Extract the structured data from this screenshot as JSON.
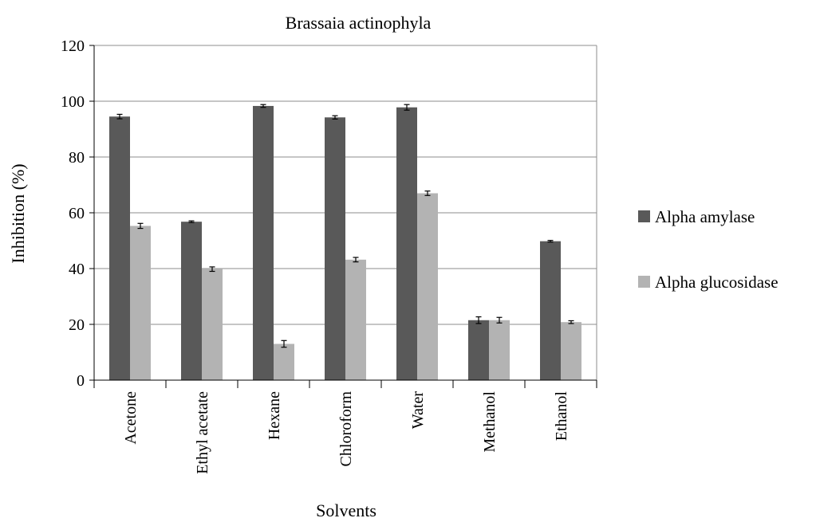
{
  "chart_data": {
    "type": "bar",
    "title": "Brassaia actinophyla",
    "xlabel": "Solvents",
    "ylabel": "Inhibition (%)",
    "ylim": [
      0,
      120
    ],
    "yticks": [
      0,
      20,
      40,
      60,
      80,
      100,
      120
    ],
    "grid": true,
    "legend_position": "right",
    "categories": [
      "Acetone",
      "Ethyl acetate",
      "Hexane",
      "Chloroform",
      "Water",
      "Methanol",
      "Ethanol"
    ],
    "series": [
      {
        "name": "Alpha amylase",
        "color": "#595959",
        "values": [
          94.5,
          56.8,
          98.3,
          94.2,
          97.8,
          21.5,
          49.8
        ],
        "errors": [
          0.8,
          0.3,
          0.5,
          0.6,
          1.0,
          1.2,
          0.3
        ]
      },
      {
        "name": "Alpha glucosidase",
        "color": "#b3b3b3",
        "values": [
          55.3,
          39.8,
          13.0,
          43.2,
          67.0,
          21.5,
          20.8
        ],
        "errors": [
          0.9,
          0.8,
          1.2,
          0.8,
          0.8,
          1.0,
          0.5
        ]
      }
    ]
  }
}
